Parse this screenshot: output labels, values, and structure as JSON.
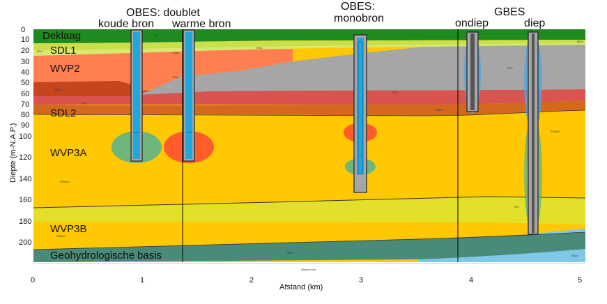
{
  "headers": {
    "obes_doublet": "OBES: doublet",
    "koude_bron": "koude bron",
    "warme_bron": "warme bron",
    "obes_mono": "OBES:",
    "monobron": "monobron",
    "gbes": "GBES",
    "ondiep": "ondiep",
    "diep": "diep"
  },
  "layers": {
    "deklaag": "Deklaag",
    "sdl1": "SDL1",
    "wvp2": "WVP2",
    "sdl2": "SDL2",
    "wvp3a": "WVP3A",
    "wvp3b": "WVP3B",
    "basis": "Geohydrologische basis"
  },
  "axes": {
    "y_label": "Diepte (m-N.A.P.)",
    "x_label": "Afstand (km)",
    "y_ticks": [
      "0",
      "10",
      "20",
      "30",
      "40",
      "50",
      "60",
      "70",
      "80",
      "90",
      "100",
      "120",
      "140",
      "160",
      "180",
      "200"
    ],
    "x_ticks": [
      "0",
      "1",
      "2",
      "3",
      "4",
      "5"
    ],
    "small_x_label": "Afstand in km"
  },
  "tiny_labels": {
    "a": "HLc",
    "b": "BXa5",
    "c": "KRz1",
    "d": "EEz1",
    "e": "BXz4",
    "f": "STz1",
    "g": "PZWAz4",
    "h": "MSc1",
    "i": "MSz3",
    "j": "PZc",
    "k": "PZWAz3",
    "l": "WAc1",
    "m": "STs1",
    "n": "DRUz1",
    "o": "EEz3"
  },
  "colors": {
    "deklaag": "#1f8a1f",
    "sdl1": "#c9e04a",
    "wvp2": "#ff7f50",
    "sdl_red": "#d9534f",
    "gray": "#a6a6a6",
    "sdl2": "#d2691e",
    "wvp3": "#ffc800",
    "yellow_band": "#e6e62e",
    "basis": "#4a8a78",
    "water": "#7fc8e8",
    "cold": "#5fb38a",
    "warm": "#ff5030",
    "well": "#1ea8e0"
  }
}
